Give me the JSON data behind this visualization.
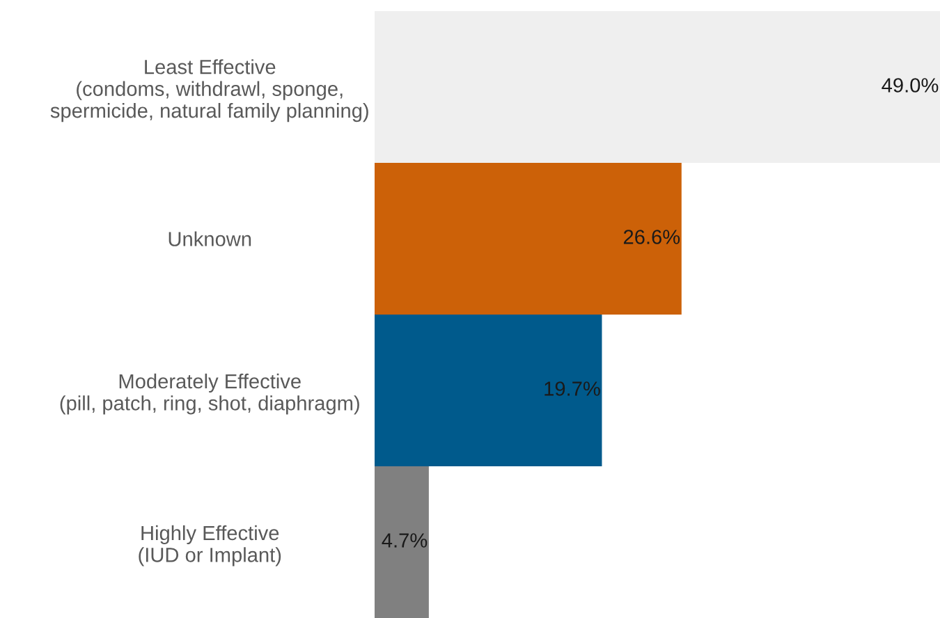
{
  "chart_data": {
    "type": "bar",
    "orientation": "horizontal",
    "categories": [
      "Least Effective\n(condoms, withdrawl, sponge,\nspermicide, natural family planning)",
      "Unknown",
      "Moderately Effective\n(pill, patch, ring, shot, diaphragm)",
      "Highly Effective\n(IUD or Implant)"
    ],
    "values": [
      49.0,
      26.6,
      19.7,
      4.7
    ],
    "colors": [
      "#efefef",
      "#cc6108",
      "#005a8c",
      "#808080"
    ],
    "value_labels": [
      "49.0%",
      "26.6%",
      "19.7%",
      "4.7%"
    ],
    "grid": false,
    "legend": false
  }
}
